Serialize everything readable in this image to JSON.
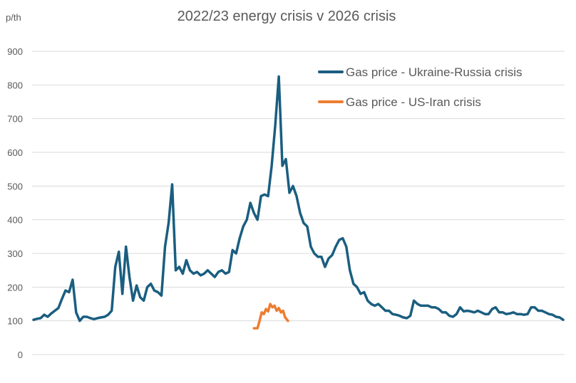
{
  "chart_data": {
    "type": "line",
    "title": "2022/23 energy crisis v 2026 crisis",
    "ylabel": "p/th",
    "xlabel": "",
    "ylim": [
      0,
      900
    ],
    "yticks": [
      0,
      100,
      200,
      300,
      400,
      500,
      600,
      700,
      800,
      900
    ],
    "grid": true,
    "legend_placement": "top-right",
    "series": [
      {
        "name": "Gas price - Ukraine-Russia crisis",
        "color": "#1a5e80",
        "values": [
          103,
          106,
          108,
          118,
          112,
          122,
          130,
          138,
          165,
          190,
          185,
          222,
          125,
          100,
          112,
          112,
          108,
          105,
          108,
          110,
          112,
          118,
          130,
          260,
          305,
          180,
          320,
          230,
          160,
          205,
          170,
          160,
          200,
          210,
          190,
          185,
          175,
          320,
          390,
          505,
          250,
          260,
          240,
          280,
          250,
          240,
          245,
          235,
          240,
          250,
          240,
          230,
          245,
          250,
          240,
          245,
          310,
          300,
          345,
          380,
          400,
          450,
          420,
          400,
          470,
          475,
          470,
          560,
          680,
          825,
          560,
          580,
          480,
          500,
          470,
          420,
          390,
          380,
          320,
          300,
          290,
          290,
          260,
          285,
          295,
          320,
          340,
          345,
          320,
          250,
          210,
          200,
          180,
          185,
          160,
          150,
          145,
          150,
          140,
          130,
          130,
          120,
          118,
          115,
          110,
          108,
          115,
          160,
          150,
          145,
          145,
          145,
          140,
          140,
          135,
          125,
          125,
          115,
          112,
          120,
          140,
          128,
          130,
          128,
          125,
          130,
          125,
          120,
          120,
          135,
          140,
          125,
          125,
          120,
          122,
          125,
          120,
          120,
          118,
          120,
          140,
          140,
          130,
          130,
          125,
          120,
          118,
          112,
          110,
          103
        ]
      },
      {
        "name": "Gas price - US-Iran crisis",
        "color": "#ed7d31",
        "x": [
          62,
          63,
          63.6,
          64.2,
          64.8,
          65.4,
          66,
          66.6,
          67.2,
          67.8,
          68.4,
          69,
          69.6,
          70.2,
          70.8,
          71.6
        ],
        "values": [
          78,
          78,
          100,
          125,
          120,
          135,
          128,
          150,
          140,
          145,
          130,
          138,
          125,
          130,
          110,
          100
        ]
      }
    ]
  }
}
